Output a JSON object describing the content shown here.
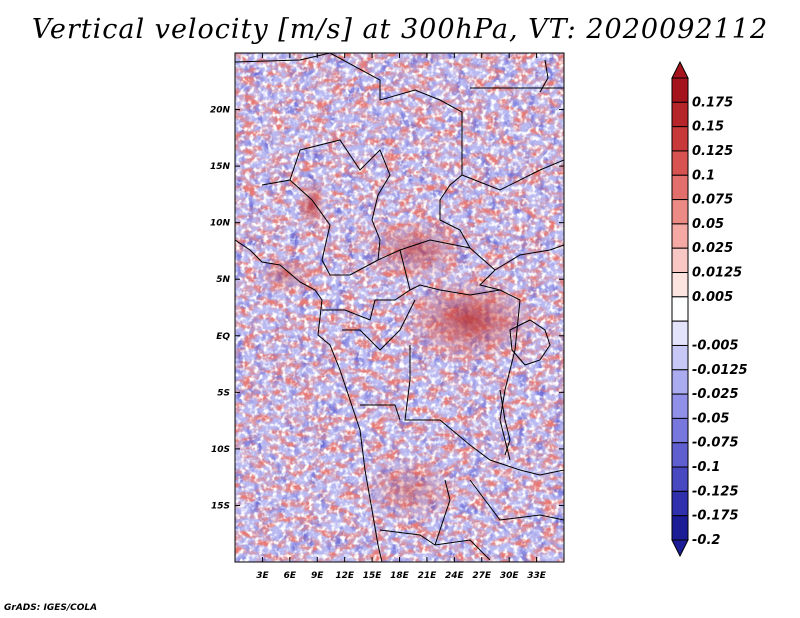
{
  "title": "Vertical velocity [m/s] at 300hPa, VT: 2020092112",
  "credit": "GrADS: IGES/COLA",
  "map": {
    "region": "Central Africa",
    "lon_range": [
      0,
      36
    ],
    "lat_range": [
      -20,
      25
    ],
    "lon_ticks": [
      {
        "value": 3,
        "label": "3E"
      },
      {
        "value": 6,
        "label": "6E"
      },
      {
        "value": 9,
        "label": "9E"
      },
      {
        "value": 12,
        "label": "12E"
      },
      {
        "value": 15,
        "label": "15E"
      },
      {
        "value": 18,
        "label": "18E"
      },
      {
        "value": 21,
        "label": "21E"
      },
      {
        "value": 24,
        "label": "24E"
      },
      {
        "value": 27,
        "label": "27E"
      },
      {
        "value": 30,
        "label": "30E"
      },
      {
        "value": 33,
        "label": "33E"
      }
    ],
    "lat_ticks": [
      {
        "value": 20,
        "label": "20N"
      },
      {
        "value": 15,
        "label": "15N"
      },
      {
        "value": 10,
        "label": "10N"
      },
      {
        "value": 5,
        "label": "5N"
      },
      {
        "value": 0,
        "label": "EQ"
      },
      {
        "value": -5,
        "label": "5S"
      },
      {
        "value": -10,
        "label": "10S"
      },
      {
        "value": -15,
        "label": "15S"
      }
    ],
    "colorbar": [
      {
        "label": "0.175",
        "color": "#a5141c"
      },
      {
        "label": "0.15",
        "color": "#b62529"
      },
      {
        "label": "0.125",
        "color": "#c83a3a"
      },
      {
        "label": "0.1",
        "color": "#d75352"
      },
      {
        "label": "0.075",
        "color": "#e26f6c"
      },
      {
        "label": "0.05",
        "color": "#ec8b86"
      },
      {
        "label": "0.025",
        "color": "#f4a9a4"
      },
      {
        "label": "0.0125",
        "color": "#f9c7c3"
      },
      {
        "label": "0.005",
        "color": "#fde4e1"
      },
      {
        "label": "",
        "color": "#ffffff"
      },
      {
        "label": "-0.005",
        "color": "#e3e3fb"
      },
      {
        "label": "-0.0125",
        "color": "#c8c8f6"
      },
      {
        "label": "-0.025",
        "color": "#ababf0"
      },
      {
        "label": "-0.05",
        "color": "#9090e8"
      },
      {
        "label": "-0.075",
        "color": "#7777dd"
      },
      {
        "label": "-0.1",
        "color": "#5f5fd0"
      },
      {
        "label": "-0.125",
        "color": "#4848c0"
      },
      {
        "label": "-0.175",
        "color": "#3030ad"
      },
      {
        "label": "-0.2",
        "color": "#1c1c96"
      }
    ],
    "colorbar_top_arrow_color": "#a5141c",
    "colorbar_bottom_arrow_color": "#1c1c96"
  }
}
